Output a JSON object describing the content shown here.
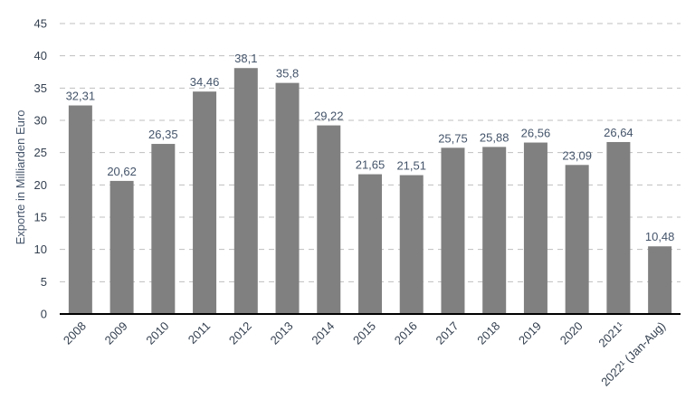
{
  "chart_data": {
    "type": "bar",
    "ylabel": "Exporte in Milliarden Euro",
    "xlabel": "",
    "title": "",
    "ylim": [
      0,
      45
    ],
    "yticks": [
      0,
      5,
      10,
      15,
      20,
      25,
      30,
      35,
      40,
      45
    ],
    "grid": true,
    "bar_color": "#808080",
    "categories": [
      "2008",
      "2009",
      "2010",
      "2011",
      "2012",
      "2013",
      "2014",
      "2015",
      "2016",
      "2017",
      "2018",
      "2019",
      "2020",
      "2021¹",
      "2022¹ (Jan-Aug)"
    ],
    "values": [
      32.31,
      20.62,
      26.35,
      34.46,
      38.1,
      35.8,
      29.22,
      21.65,
      21.51,
      25.75,
      25.88,
      26.56,
      23.09,
      26.64,
      10.48
    ],
    "labels": [
      "32,31",
      "20,62",
      "26,35",
      "34,46",
      "38,1",
      "35,8",
      "29,22",
      "21,65",
      "21,51",
      "25,75",
      "25,88",
      "26,56",
      "23,09",
      "26,64",
      "10,48"
    ]
  }
}
